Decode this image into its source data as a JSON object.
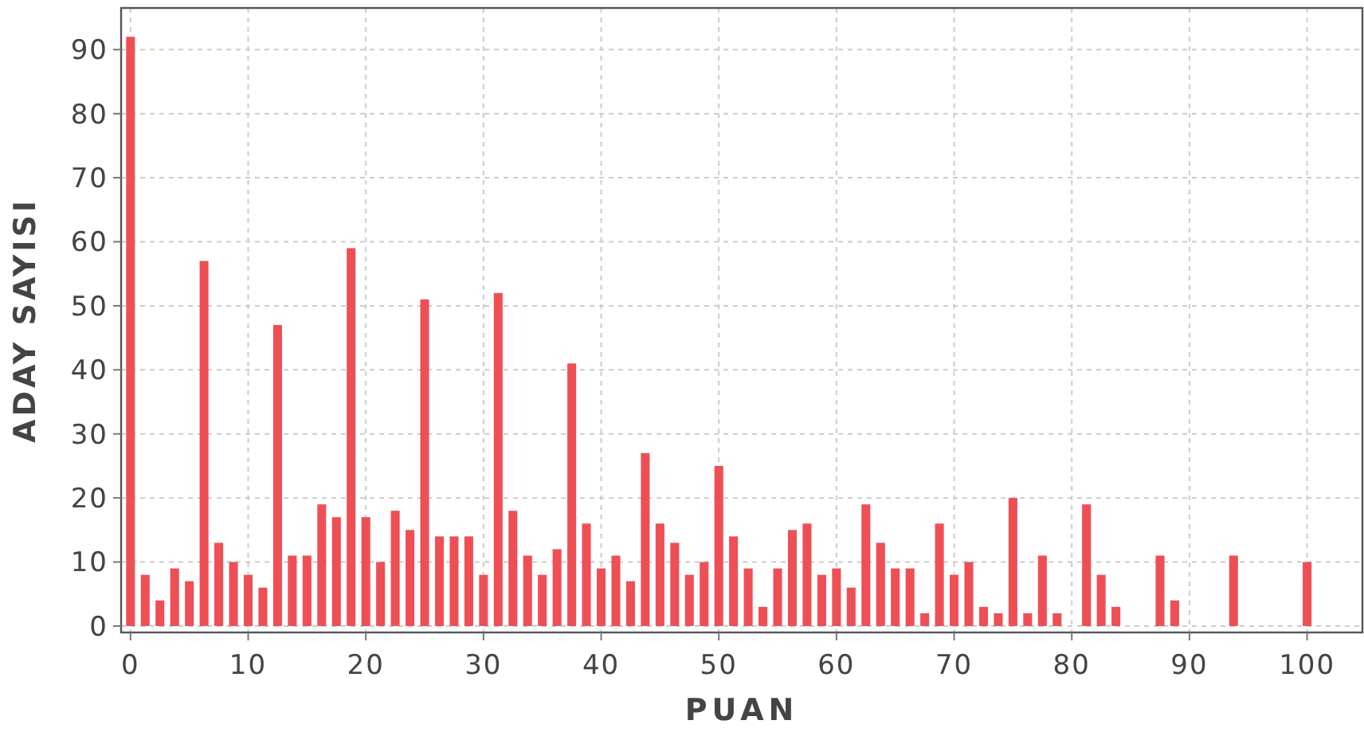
{
  "chart_data": {
    "type": "bar",
    "xlabel": "PUAN",
    "ylabel": "ADAY SAYISI",
    "color": "#ee4f55",
    "x": [
      0,
      1.25,
      2.5,
      3.75,
      5,
      6.25,
      7.5,
      8.75,
      10,
      11.25,
      12.5,
      13.75,
      15,
      16.25,
      17.5,
      18.75,
      20,
      21.25,
      22.5,
      23.75,
      25,
      26.25,
      27.5,
      28.75,
      30,
      31.25,
      32.5,
      33.75,
      35,
      36.25,
      37.5,
      38.75,
      40,
      41.25,
      42.5,
      43.75,
      45,
      46.25,
      47.5,
      48.75,
      50,
      51.25,
      52.5,
      53.75,
      55,
      56.25,
      57.5,
      58.75,
      60,
      61.25,
      62.5,
      63.75,
      65,
      66.25,
      67.5,
      68.75,
      70,
      71.25,
      72.5,
      73.75,
      75,
      76.25,
      77.5,
      78.75,
      81.25,
      82.5,
      83.75,
      87.5,
      88.75,
      93.75,
      100
    ],
    "values": [
      92,
      8,
      4,
      9,
      7,
      57,
      13,
      10,
      8,
      6,
      47,
      11,
      11,
      19,
      17,
      59,
      17,
      10,
      18,
      15,
      51,
      14,
      14,
      14,
      8,
      52,
      18,
      11,
      8,
      12,
      41,
      16,
      9,
      11,
      7,
      27,
      16,
      13,
      8,
      10,
      25,
      14,
      9,
      3,
      9,
      15,
      16,
      8,
      9,
      6,
      19,
      13,
      9,
      9,
      2,
      16,
      8,
      10,
      3,
      2,
      20,
      2,
      11,
      2,
      19,
      8,
      3,
      11,
      4,
      11,
      10
    ],
    "xlim": [
      -0.8,
      104.7
    ],
    "ylim": [
      -1,
      96.5
    ],
    "xticks": [
      0,
      10,
      20,
      30,
      40,
      50,
      60,
      70,
      80,
      90,
      100
    ],
    "yticks": [
      0,
      10,
      20,
      30,
      40,
      50,
      60,
      70,
      80,
      90
    ],
    "grid": true
  }
}
